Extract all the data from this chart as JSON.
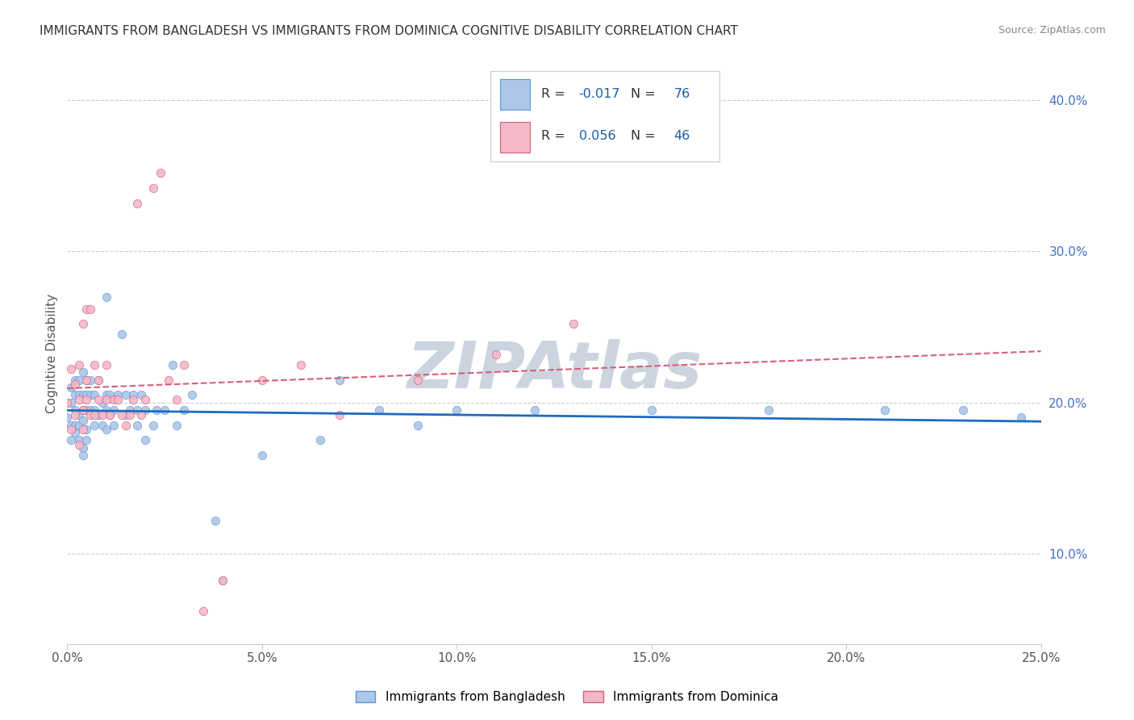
{
  "title": "IMMIGRANTS FROM BANGLADESH VS IMMIGRANTS FROM DOMINICA COGNITIVE DISABILITY CORRELATION CHART",
  "source": "Source: ZipAtlas.com",
  "ylabel": "Cognitive Disability",
  "watermark": "ZIPAtlas",
  "xlim": [
    0.0,
    0.25
  ],
  "ylim": [
    0.04,
    0.425
  ],
  "xticks": [
    0.0,
    0.05,
    0.1,
    0.15,
    0.2,
    0.25
  ],
  "yticks": [
    0.1,
    0.2,
    0.3,
    0.4
  ],
  "series": [
    {
      "label": "Immigrants from Bangladesh",
      "color": "#aec6e8",
      "edge_color": "#5b9bd5",
      "R": -0.017,
      "N": 76,
      "line_color": "#1f6bbf",
      "line_style": "solid",
      "x": [
        0.0,
        0.001,
        0.001,
        0.001,
        0.001,
        0.002,
        0.002,
        0.002,
        0.002,
        0.002,
        0.003,
        0.003,
        0.003,
        0.003,
        0.003,
        0.004,
        0.004,
        0.004,
        0.004,
        0.004,
        0.004,
        0.005,
        0.005,
        0.005,
        0.005,
        0.005,
        0.006,
        0.006,
        0.006,
        0.007,
        0.007,
        0.007,
        0.008,
        0.008,
        0.009,
        0.009,
        0.01,
        0.01,
        0.01,
        0.01,
        0.011,
        0.011,
        0.012,
        0.012,
        0.013,
        0.014,
        0.015,
        0.015,
        0.016,
        0.017,
        0.018,
        0.018,
        0.019,
        0.02,
        0.02,
        0.022,
        0.023,
        0.025,
        0.027,
        0.028,
        0.03,
        0.032,
        0.038,
        0.04,
        0.05,
        0.065,
        0.07,
        0.08,
        0.09,
        0.1,
        0.12,
        0.15,
        0.18,
        0.21,
        0.23,
        0.245
      ],
      "y": [
        0.19,
        0.2,
        0.21,
        0.185,
        0.175,
        0.195,
        0.205,
        0.215,
        0.18,
        0.185,
        0.175,
        0.192,
        0.205,
        0.215,
        0.185,
        0.195,
        0.205,
        0.22,
        0.17,
        0.165,
        0.188,
        0.182,
        0.195,
        0.205,
        0.215,
        0.175,
        0.195,
        0.205,
        0.215,
        0.185,
        0.195,
        0.205,
        0.192,
        0.215,
        0.185,
        0.2,
        0.182,
        0.195,
        0.205,
        0.27,
        0.192,
        0.205,
        0.185,
        0.195,
        0.205,
        0.245,
        0.192,
        0.205,
        0.195,
        0.205,
        0.185,
        0.195,
        0.205,
        0.175,
        0.195,
        0.185,
        0.195,
        0.195,
        0.225,
        0.185,
        0.195,
        0.205,
        0.122,
        0.082,
        0.165,
        0.175,
        0.215,
        0.195,
        0.185,
        0.195,
        0.195,
        0.195,
        0.195,
        0.195,
        0.195,
        0.19
      ]
    },
    {
      "label": "Immigrants from Dominica",
      "color": "#f4b8c8",
      "edge_color": "#d4607a",
      "R": 0.056,
      "N": 46,
      "line_color": "#d4607a",
      "line_style": "dashed",
      "x": [
        0.0,
        0.001,
        0.001,
        0.002,
        0.002,
        0.003,
        0.003,
        0.003,
        0.004,
        0.004,
        0.004,
        0.005,
        0.005,
        0.005,
        0.006,
        0.006,
        0.007,
        0.007,
        0.008,
        0.008,
        0.009,
        0.01,
        0.01,
        0.011,
        0.012,
        0.013,
        0.014,
        0.015,
        0.016,
        0.017,
        0.018,
        0.019,
        0.02,
        0.022,
        0.024,
        0.026,
        0.028,
        0.03,
        0.035,
        0.04,
        0.05,
        0.06,
        0.07,
        0.09,
        0.11,
        0.13
      ],
      "y": [
        0.2,
        0.222,
        0.182,
        0.192,
        0.212,
        0.172,
        0.202,
        0.225,
        0.182,
        0.195,
        0.252,
        0.202,
        0.262,
        0.215,
        0.192,
        0.262,
        0.192,
        0.225,
        0.202,
        0.215,
        0.192,
        0.202,
        0.225,
        0.192,
        0.202,
        0.202,
        0.192,
        0.185,
        0.192,
        0.202,
        0.332,
        0.192,
        0.202,
        0.342,
        0.352,
        0.215,
        0.202,
        0.225,
        0.062,
        0.082,
        0.215,
        0.225,
        0.192,
        0.215,
        0.232,
        0.252
      ]
    }
  ],
  "legend_color": "#1a5fa8",
  "title_fontsize": 11,
  "axis_label_fontsize": 11,
  "tick_fontsize": 11,
  "background_color": "#ffffff",
  "grid_color": "#cccccc",
  "watermark_color": "#ccd4e0",
  "yaxis_tick_color": "#4472c4"
}
